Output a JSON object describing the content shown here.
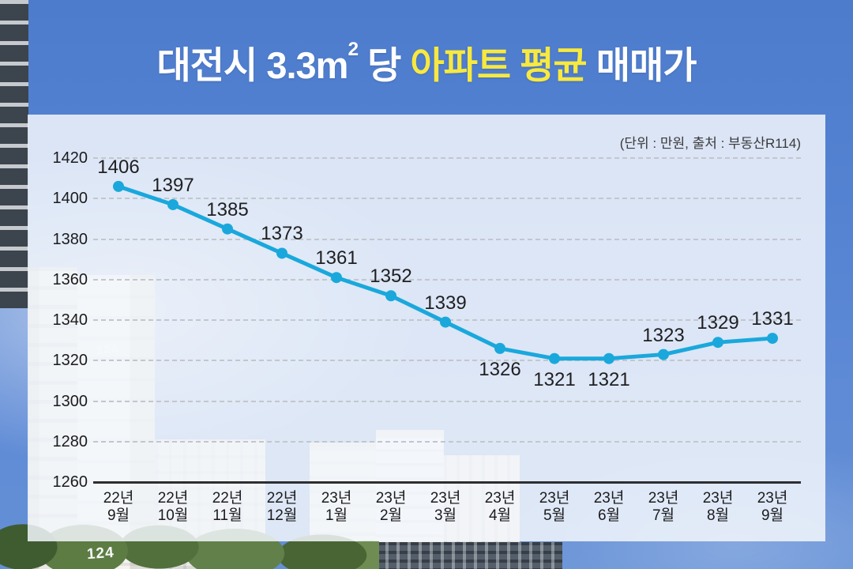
{
  "title_parts": {
    "lead": "대전시 3.3m",
    "sup": "2",
    "mid": " 당 ",
    "highlight": "아파트 평균",
    "tail": " 매매가"
  },
  "background": {
    "building_label": "124"
  },
  "chart_data": {
    "type": "line",
    "title": "대전시 3.3m² 당 아파트 평균 매매가",
    "unit_note": "(단위 : 만원, 출처 : 부동산R114)",
    "categories": [
      "22년 9월",
      "22년 10월",
      "22년 11월",
      "22년 12월",
      "23년 1월",
      "23년 2월",
      "23년 3월",
      "23년 4월",
      "23년 5월",
      "23년 6월",
      "23년 7월",
      "23년 8월",
      "23년 9월"
    ],
    "values": [
      1406,
      1397,
      1385,
      1373,
      1361,
      1352,
      1339,
      1326,
      1321,
      1321,
      1323,
      1329,
      1331
    ],
    "ylim": [
      1260,
      1420
    ],
    "ytick_step": 20,
    "yticks": [
      1420,
      1400,
      1380,
      1360,
      1340,
      1320,
      1300,
      1280,
      1260
    ],
    "grid": "dashed-horizontal",
    "legend": "none",
    "xlabel": "",
    "ylabel": "",
    "line_color": "#1aa8dc",
    "marker_color": "#1aa8dc",
    "label_below_indices": [
      7,
      8,
      9
    ]
  }
}
